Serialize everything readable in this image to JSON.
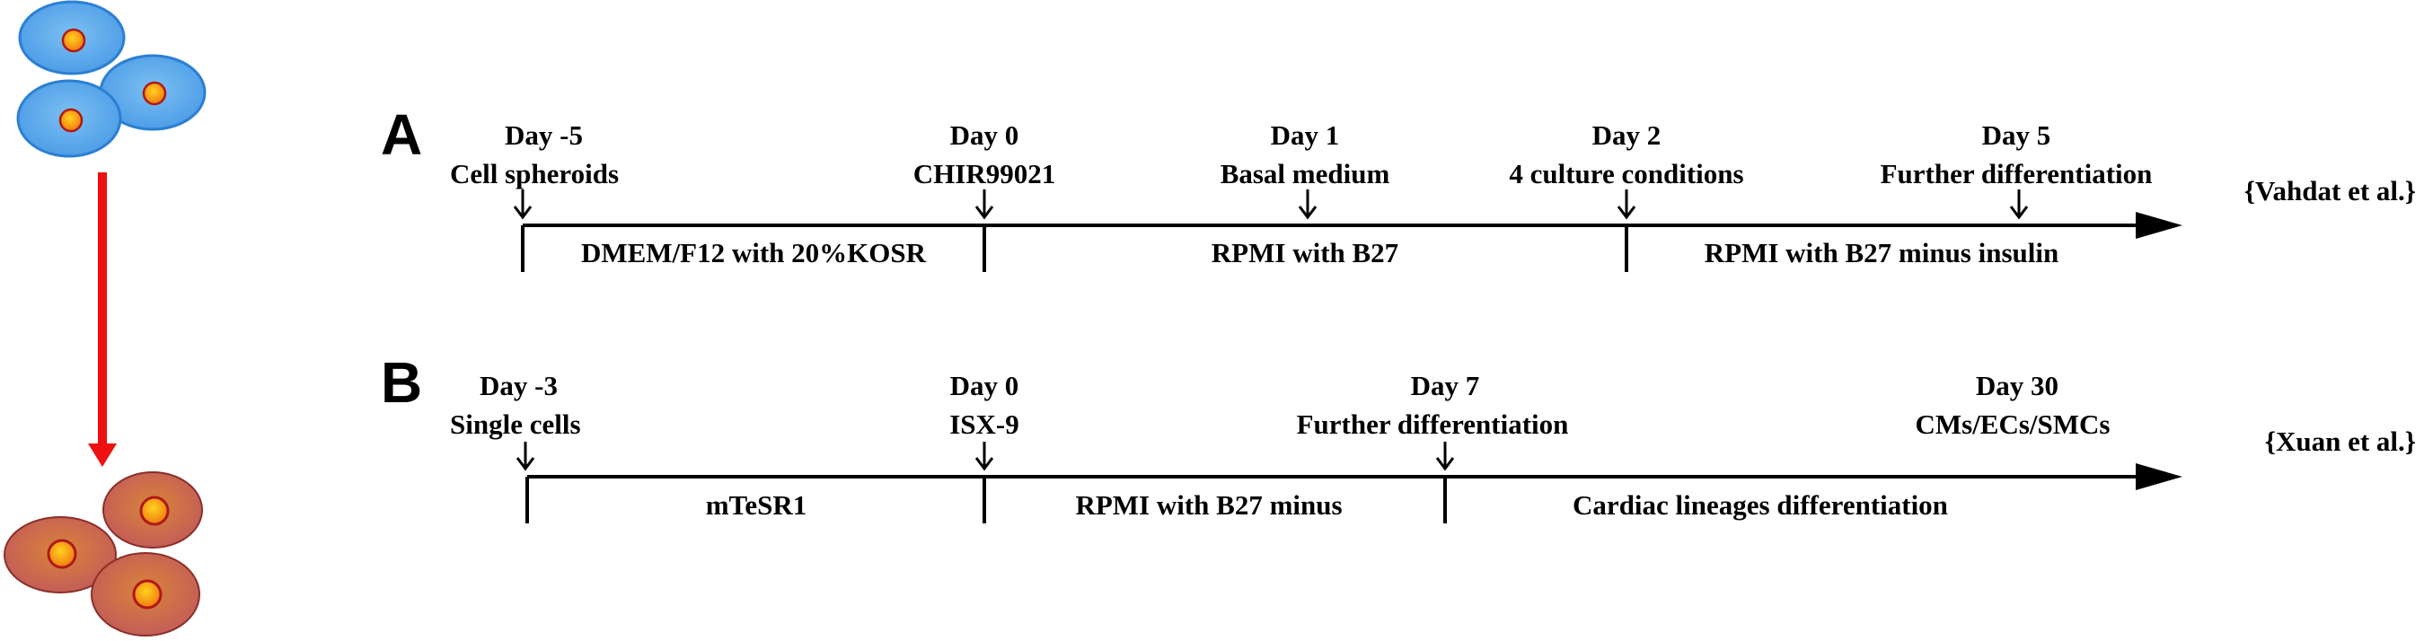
{
  "cells": {
    "stem_fill": "#5aa8e8",
    "stem_edge": "#1f78d1",
    "diff_fill": "#c4655f",
    "diff_edge": "#8a2f28",
    "nucleus_fill": "#f08a1c",
    "nucleus_edge": "#b01818",
    "arrow_color": "#ee1111"
  },
  "panel_a": {
    "letter": "A",
    "citation": "{Vahdat et al.}",
    "events": [
      {
        "day": "Day -5",
        "desc": "Cell spheroids"
      },
      {
        "day": "Day 0",
        "desc": "CHIR99021"
      },
      {
        "day": "Day 1",
        "desc": "Basal medium"
      },
      {
        "day": "Day 2",
        "desc": "4 culture conditions"
      },
      {
        "day": "Day 5",
        "desc": "Further differentiation"
      }
    ],
    "segments": [
      "DMEM/F12 with 20%KOSR",
      "RPMI with B27",
      "RPMI with B27 minus insulin"
    ]
  },
  "panel_b": {
    "letter": "B",
    "citation": "{Xuan et al.}",
    "events": [
      {
        "day": "Day -3",
        "desc": "Single cells"
      },
      {
        "day": "Day 0",
        "desc": "ISX-9"
      },
      {
        "day": "Day 7",
        "desc": "Further differentiation"
      },
      {
        "day": "Day 30",
        "desc": "CMs/ECs/SMCs"
      }
    ],
    "segments": [
      "mTeSR1",
      "RPMI with B27 minus",
      "Cardiac lineages differentiation"
    ]
  }
}
